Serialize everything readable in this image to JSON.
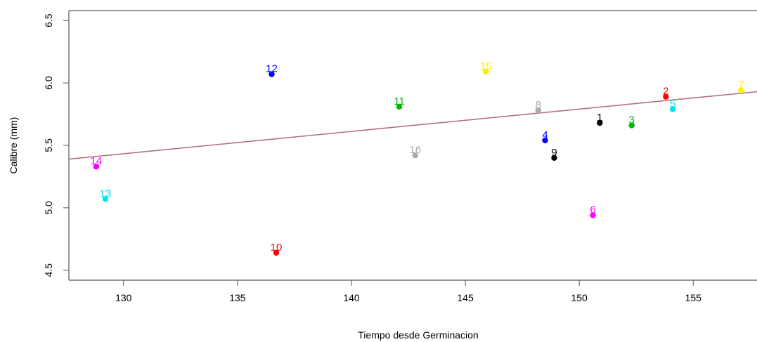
{
  "chart_data": {
    "type": "scatter",
    "title": "",
    "xlabel": "Tiempo desde Germinacion",
    "ylabel": "Calibre (mm)",
    "xlim": [
      127.6,
      157.8
    ],
    "ylim": [
      4.42,
      6.58
    ],
    "x_ticks": [
      130,
      135,
      140,
      145,
      150,
      155
    ],
    "y_ticks": [
      4.5,
      5.0,
      5.5,
      6.0,
      6.5
    ],
    "x_tick_labels": [
      "130",
      "135",
      "140",
      "145",
      "150",
      "155"
    ],
    "y_tick_labels": [
      "4.5",
      "5.0",
      "5.5",
      "6.0",
      "6.5"
    ],
    "grid": false,
    "legend": "none",
    "points": [
      {
        "label": "1",
        "x": 150.9,
        "y": 5.68,
        "color": "#000000"
      },
      {
        "label": "2",
        "x": 153.8,
        "y": 5.89,
        "color": "#ff0000"
      },
      {
        "label": "3",
        "x": 152.3,
        "y": 5.66,
        "color": "#00bb00"
      },
      {
        "label": "4",
        "x": 148.5,
        "y": 5.54,
        "color": "#0000ff"
      },
      {
        "label": "5",
        "x": 154.1,
        "y": 5.79,
        "color": "#00e5ee"
      },
      {
        "label": "6",
        "x": 150.6,
        "y": 4.94,
        "color": "#ff00ff"
      },
      {
        "label": "7",
        "x": 157.1,
        "y": 5.94,
        "color": "#ffee00"
      },
      {
        "label": "8",
        "x": 148.2,
        "y": 5.78,
        "color": "#aaaaaa"
      },
      {
        "label": "9",
        "x": 148.9,
        "y": 5.4,
        "color": "#000000"
      },
      {
        "label": "10",
        "x": 136.7,
        "y": 4.64,
        "color": "#ff0000"
      },
      {
        "label": "11",
        "x": 142.1,
        "y": 5.81,
        "color": "#00bb00"
      },
      {
        "label": "12",
        "x": 136.5,
        "y": 6.07,
        "color": "#0000ff"
      },
      {
        "label": "13",
        "x": 129.2,
        "y": 5.07,
        "color": "#00e5ee"
      },
      {
        "label": "14",
        "x": 128.8,
        "y": 5.33,
        "color": "#ff00ff"
      },
      {
        "label": "15",
        "x": 145.9,
        "y": 6.09,
        "color": "#ffee00"
      },
      {
        "label": "16",
        "x": 142.8,
        "y": 5.42,
        "color": "#aaaaaa"
      }
    ],
    "regression_line": {
      "x": [
        127.6,
        157.8
      ],
      "y": [
        5.39,
        5.93
      ],
      "color": "#b5727f"
    }
  }
}
